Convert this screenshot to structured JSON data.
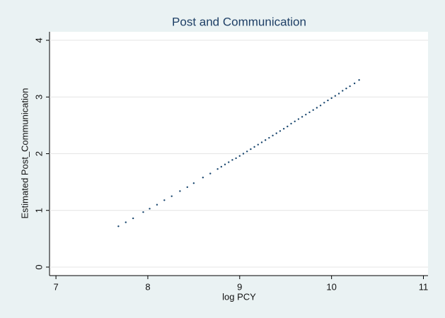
{
  "chart_data": {
    "type": "scatter",
    "title": "Post and Communication",
    "xlabel": "log PCY",
    "ylabel": "Estimated Post_Communication",
    "x": [
      7.68,
      7.76,
      7.84,
      7.95,
      8.02,
      8.1,
      8.18,
      8.26,
      8.35,
      8.43,
      8.5,
      8.6,
      8.68,
      8.76,
      8.8,
      8.84,
      8.88,
      8.92,
      8.96,
      9.0,
      9.04,
      9.08,
      9.12,
      9.16,
      9.2,
      9.24,
      9.28,
      9.32,
      9.36,
      9.4,
      9.44,
      9.48,
      9.52,
      9.56,
      9.6,
      9.64,
      9.68,
      9.72,
      9.76,
      9.8,
      9.84,
      9.88,
      9.92,
      9.96,
      10.0,
      10.04,
      10.08,
      10.12,
      10.16,
      10.2,
      10.25,
      10.3
    ],
    "values": [
      0.72,
      0.79,
      0.86,
      0.97,
      1.03,
      1.1,
      1.18,
      1.25,
      1.34,
      1.41,
      1.48,
      1.58,
      1.65,
      1.73,
      1.77,
      1.81,
      1.85,
      1.89,
      1.92,
      1.96,
      2.0,
      2.04,
      2.08,
      2.12,
      2.16,
      2.2,
      2.24,
      2.28,
      2.32,
      2.36,
      2.4,
      2.44,
      2.48,
      2.53,
      2.57,
      2.61,
      2.65,
      2.69,
      2.73,
      2.77,
      2.81,
      2.85,
      2.9,
      2.94,
      2.98,
      3.02,
      3.06,
      3.11,
      3.15,
      3.19,
      3.24,
      3.3
    ],
    "color": "#1a476f",
    "xlim": [
      6.93,
      11.05
    ],
    "xticks": [
      7,
      8,
      9,
      10,
      11
    ],
    "ylim": [
      -0.15,
      4.15
    ],
    "yticks": [
      0,
      1,
      2,
      3,
      4
    ],
    "grid": true
  }
}
